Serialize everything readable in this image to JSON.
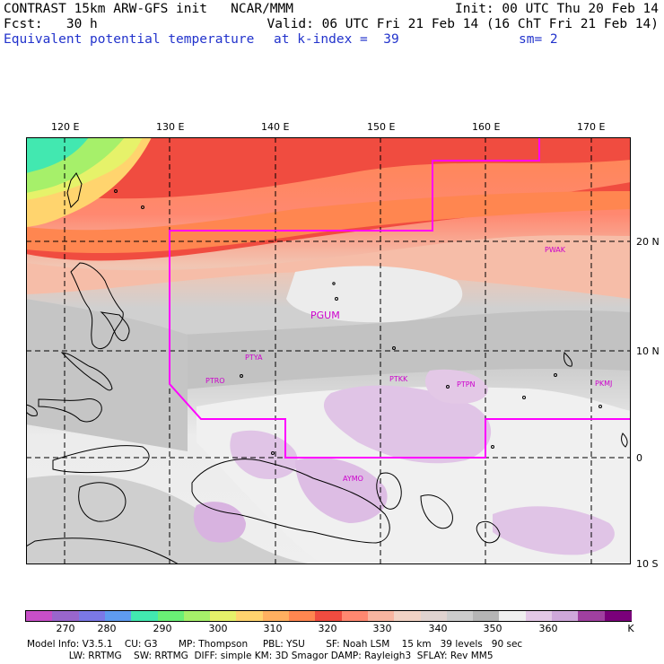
{
  "header": {
    "left_line1": "CONTRAST 15km ARW-GFS init   NCAR/MMM",
    "left_line2": "Fcst:   30 h",
    "left_line3": "Equivalent potential temperature",
    "mid_line3": "at k-index =  39",
    "right_line1": "Init: 00 UTC Thu 20 Feb 14",
    "right_line2": "Valid: 06 UTC Fri 21 Feb 14 (16 ChT Fri 21 Feb 14)",
    "right_line3": "sm= 2"
  },
  "map": {
    "lon_labels": [
      "120 E",
      "130 E",
      "140 E",
      "150 E",
      "160 E",
      "170 E"
    ],
    "lat_labels": [
      "20 N",
      "10 N",
      "0",
      "10 S"
    ],
    "stations": [
      {
        "name": "PGUM",
        "large": true
      },
      {
        "name": "PTYA"
      },
      {
        "name": "PTRO"
      },
      {
        "name": "PTKK"
      },
      {
        "name": "PTPN"
      },
      {
        "name": "PKMJ"
      },
      {
        "name": "PWAK"
      },
      {
        "name": "AYMO"
      }
    ],
    "colors": {
      "boundary": "#ff00ff",
      "grid": "#000000",
      "coast": "#000000"
    }
  },
  "colorbar": {
    "unit": "K",
    "tick_labels": [
      "270",
      "280",
      "290",
      "300",
      "310",
      "320",
      "330",
      "340",
      "350",
      "360"
    ],
    "colors": [
      "#c84fc8",
      "#9966cc",
      "#7b78e6",
      "#5f9bef",
      "#42e8b0",
      "#6aef76",
      "#a6f06a",
      "#e6f26a",
      "#ffd46e",
      "#ffb060",
      "#ff8650",
      "#f04c40",
      "#ff8870",
      "#f8b5a0",
      "#f2d3c5",
      "#e0d3d0",
      "#cccccc",
      "#b5b5b5",
      "#efefef",
      "#e3c8e6",
      "#cfa8da",
      "#a040a0",
      "#7a007a"
    ]
  },
  "footer": {
    "line1": "Model Info: V3.5.1    CU: G3       MP: Thompson     PBL: YSU       SF: Noah LSM    15 km   39 levels   90 sec",
    "line2": "              LW: RRTMG    SW: RRTMG  DIFF: simple KM: 3D Smagor DAMP: Rayleigh3  SFLAY: Rev MM5"
  }
}
